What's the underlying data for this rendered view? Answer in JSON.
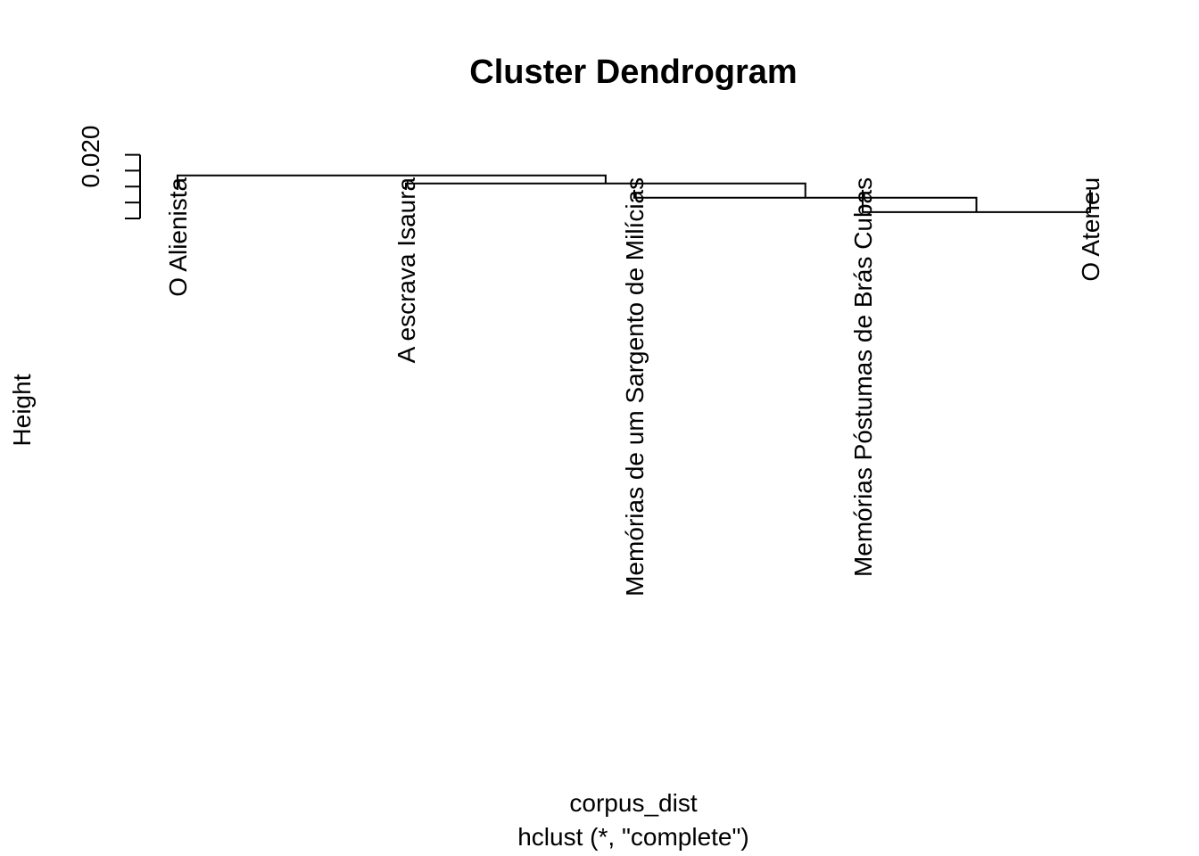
{
  "chart_data": {
    "type": "dendrogram",
    "title": "Cluster Dendrogram",
    "ylabel": "Height",
    "xlabel": "corpus_dist",
    "sub": "hclust (*, \"complete\")",
    "y_ticks": [
      0.016,
      0.017,
      0.018,
      0.019,
      0.02
    ],
    "y_tick_labels_shown": [
      "0.020"
    ],
    "ylim": [
      0.016,
      0.0202
    ],
    "label_hang_height": 0.0178,
    "leaves": [
      "O Alienista",
      "A escrava Isaura",
      "Memórias de um Sargento de Milícias",
      "Memórias Póstumas de Brás Cubas",
      "O Ateneu"
    ],
    "merges": [
      {
        "left": 4,
        "right": 5,
        "height": 0.0164
      },
      {
        "left": 3,
        "right": "m1",
        "height": 0.0173
      },
      {
        "left": 2,
        "right": "m2",
        "height": 0.0182
      },
      {
        "left": 1,
        "right": "m3",
        "height": 0.0187
      }
    ]
  }
}
